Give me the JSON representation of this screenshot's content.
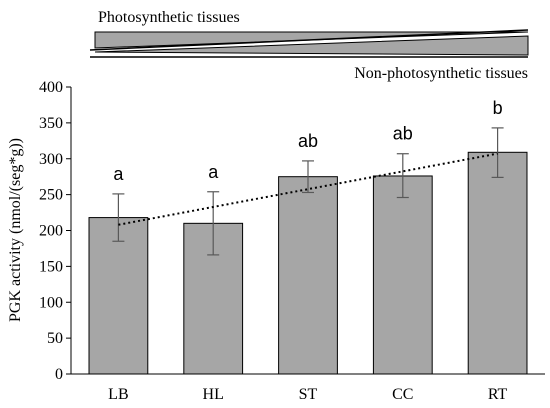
{
  "header": {
    "top_label": "Photosynthetic tissues",
    "bottom_label": "Non-photosynthetic tissues"
  },
  "colors": {
    "bar_fill": "#a6a6a6",
    "bar_stroke": "#000000",
    "error_bar": "#595959",
    "trendline": "#000000",
    "axis": "#000000"
  },
  "chart_data": {
    "type": "bar",
    "categories": [
      "LB",
      "HL",
      "ST",
      "CC",
      "RT"
    ],
    "values": [
      218,
      210,
      275,
      276,
      309
    ],
    "error_low": [
      185,
      166,
      253,
      246,
      274
    ],
    "error_high": [
      251,
      254,
      297,
      307,
      343
    ],
    "significance_labels": [
      "a",
      "a",
      "ab",
      "ab",
      "b"
    ],
    "trendline": {
      "style": "dotted",
      "type": "linear"
    },
    "title": "",
    "xlabel": "",
    "ylabel": "PGK activity (nmol/(seg*g))",
    "ylim": [
      0,
      400
    ],
    "yticks": [
      0,
      50,
      100,
      150,
      200,
      250,
      300,
      350,
      400
    ],
    "grid": false,
    "legend": "none"
  }
}
